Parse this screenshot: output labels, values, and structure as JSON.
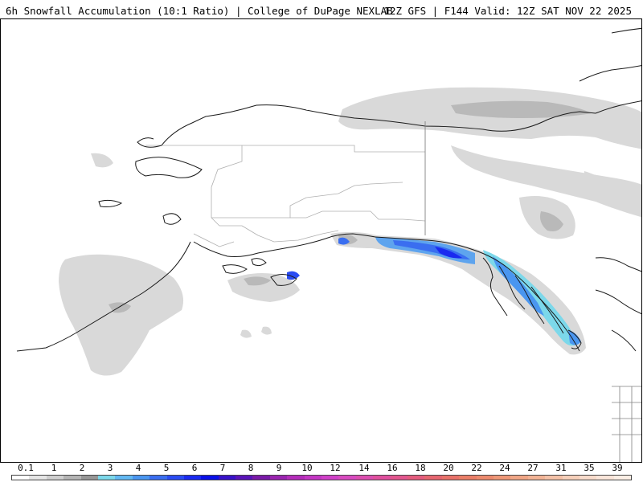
{
  "header": {
    "title": "6h Snowfall Accumulation (10:1 Ratio) | College of DuPage NEXLAB",
    "run_info": "12Z GFS | F144 Valid: 12Z SAT NOV 22 2025"
  },
  "colorbar": {
    "tick_labels": [
      "0.1",
      "1",
      "2",
      "3",
      "4",
      "5",
      "6",
      "7",
      "8",
      "9",
      "10",
      "12",
      "14",
      "16",
      "18",
      "20",
      "22",
      "24",
      "27",
      "31",
      "35",
      "39"
    ],
    "colors": [
      "#ffffff",
      "#e6e6e6",
      "#cfcfcf",
      "#b4b4b4",
      "#969696",
      "#7cd8ea",
      "#62b8f2",
      "#4a96f0",
      "#3a6ef0",
      "#2a4cf2",
      "#1a2af0",
      "#0a10e8",
      "#3812c8",
      "#5a14b8",
      "#7a1aa8",
      "#9a24b0",
      "#b42cba",
      "#c436c4",
      "#d040c8",
      "#d84ac0",
      "#dc4eb0",
      "#e0509e",
      "#e2568e",
      "#e45c7e",
      "#e66670",
      "#e8726a",
      "#ea7e68",
      "#ec8a6e",
      "#ee9878",
      "#f0a686",
      "#f2b496",
      "#f4c2a8",
      "#f6d0ba",
      "#f8dccc",
      "#fae6da",
      "#fcefe6"
    ]
  }
}
